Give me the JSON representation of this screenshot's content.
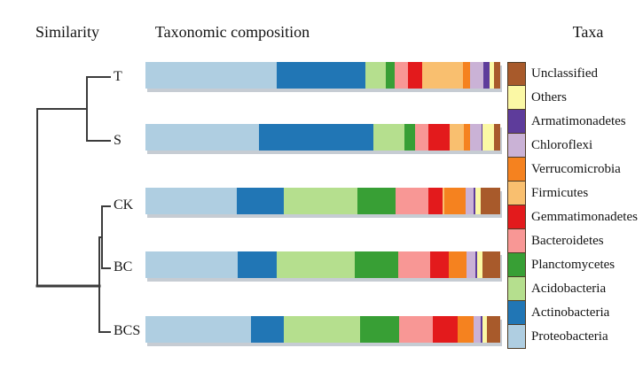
{
  "figure": {
    "headers": {
      "similarity": "Similarity",
      "composition": "Taxonomic composition",
      "taxa": "Taxa"
    }
  },
  "chart_data": {
    "type": "bar",
    "variant": "horizontal-stacked-100-percent-with-dendrogram",
    "title": "Taxonomic composition",
    "categories": [
      "T",
      "S",
      "CK",
      "BC",
      "BCS"
    ],
    "legend_position": "right",
    "legend_top_to_bottom": [
      "Unclassified",
      "Others",
      "Armatimonadetes",
      "Chloroflexi",
      "Verrucomicrobia",
      "Firmicutes",
      "Gemmatimonadetes",
      "Bacteroidetes",
      "Planctomycetes",
      "Acidobacteria",
      "Actinobacteria",
      "Proteobacteria"
    ],
    "stack_order_left_to_right": [
      "Proteobacteria",
      "Actinobacteria",
      "Acidobacteria",
      "Planctomycetes",
      "Bacteroidetes",
      "Gemmatimonadetes",
      "Firmicutes",
      "Verrucomicrobia",
      "Chloroflexi",
      "Armatimonadetes",
      "Others",
      "Unclassified"
    ],
    "colors": {
      "Unclassified": "#A85A2B",
      "Others": "#FBF8A5",
      "Armatimonadetes": "#5E3C9B",
      "Chloroflexi": "#CAB2D6",
      "Verrucomicrobia": "#F5821F",
      "Firmicutes": "#F9BF6F",
      "Gemmatimonadetes": "#E31A1C",
      "Bacteroidetes": "#F89795",
      "Planctomycetes": "#389F35",
      "Acidobacteria": "#B5DF8E",
      "Actinobacteria": "#2176B5",
      "Proteobacteria": "#AFCEE1"
    },
    "values_percent": {
      "T": {
        "Proteobacteria": 37.0,
        "Actinobacteria": 25.0,
        "Acidobacteria": 5.8,
        "Planctomycetes": 2.5,
        "Bacteroidetes": 3.8,
        "Gemmatimonadetes": 3.8,
        "Firmicutes": 11.5,
        "Verrucomicrobia": 2.0,
        "Chloroflexi": 3.8,
        "Armatimonadetes": 1.8,
        "Others": 1.3,
        "Unclassified": 1.7
      },
      "S": {
        "Proteobacteria": 32.0,
        "Actinobacteria": 32.3,
        "Acidobacteria": 8.8,
        "Planctomycetes": 2.8,
        "Bacteroidetes": 3.8,
        "Gemmatimonadetes": 6.0,
        "Firmicutes": 4.0,
        "Verrucomicrobia": 1.8,
        "Chloroflexi": 3.2,
        "Armatimonadetes": 0.4,
        "Others": 3.2,
        "Unclassified": 1.7
      },
      "CK": {
        "Proteobacteria": 25.8,
        "Actinobacteria": 13.3,
        "Acidobacteria": 20.6,
        "Planctomycetes": 10.8,
        "Bacteroidetes": 9.3,
        "Gemmatimonadetes": 4.0,
        "Firmicutes": 0.5,
        "Verrucomicrobia": 6.0,
        "Chloroflexi": 2.2,
        "Armatimonadetes": 0.6,
        "Others": 1.4,
        "Unclassified": 5.5
      },
      "BC": {
        "Proteobacteria": 26.0,
        "Actinobacteria": 11.0,
        "Acidobacteria": 21.9,
        "Planctomycetes": 12.3,
        "Bacteroidetes": 9.0,
        "Gemmatimonadetes": 5.3,
        "Firmicutes": 0.0,
        "Verrucomicrobia": 5.0,
        "Chloroflexi": 2.5,
        "Armatimonadetes": 0.5,
        "Others": 1.5,
        "Unclassified": 5.0
      },
      "BCS": {
        "Proteobacteria": 29.8,
        "Actinobacteria": 9.3,
        "Acidobacteria": 21.5,
        "Planctomycetes": 11.0,
        "Bacteroidetes": 9.5,
        "Gemmatimonadetes": 7.0,
        "Firmicutes": 0.0,
        "Verrucomicrobia": 4.3,
        "Chloroflexi": 2.0,
        "Armatimonadetes": 0.5,
        "Others": 1.3,
        "Unclassified": 3.8
      }
    },
    "dendrogram": {
      "axis_label": "Similarity",
      "leaf_order_top_to_bottom": [
        "T",
        "S",
        "CK",
        "BC",
        "BCS"
      ],
      "topology": "((T,S),((CK,BC),BCS))"
    }
  }
}
